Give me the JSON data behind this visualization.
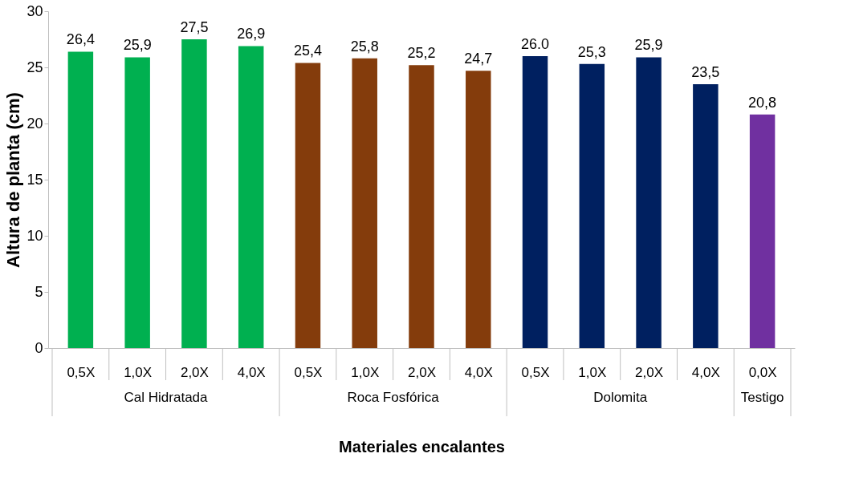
{
  "chart_data": {
    "type": "bar",
    "xlabel": "Materiales encalantes",
    "ylabel": "Altura de planta (cm)",
    "categories": [
      "0,5X",
      "1,0X",
      "2,0X",
      "4,0X",
      "0,5X",
      "1,0X",
      "2,0X",
      "4,0X",
      "0,5X",
      "1,0X",
      "2,0X",
      "4,0X",
      "0,0X"
    ],
    "values": [
      26.4,
      25.9,
      27.5,
      26.9,
      25.4,
      25.8,
      25.2,
      24.7,
      26.0,
      25.3,
      25.9,
      23.5,
      20.8
    ],
    "colors": [
      "#00b050",
      "#00b050",
      "#00b050",
      "#00b050",
      "#843c0c",
      "#843c0c",
      "#843c0c",
      "#843c0c",
      "#002060",
      "#002060",
      "#002060",
      "#002060",
      "#7030a0"
    ],
    "value_labels": [
      "26,4",
      "25,9",
      "27,5",
      "26,9",
      "25,4",
      "25,8",
      "25,2",
      "24,7",
      "26.0",
      "25,3",
      "25,9",
      "23,5",
      "20,8"
    ],
    "annotations": [
      "Cal Hidratada",
      "Roca Fosfórica",
      "Dolomita",
      "Testigo"
    ],
    "ylim": [
      0,
      30
    ],
    "yticks": [
      0,
      5,
      10,
      15,
      20,
      25,
      30
    ],
    "grid": false
  }
}
